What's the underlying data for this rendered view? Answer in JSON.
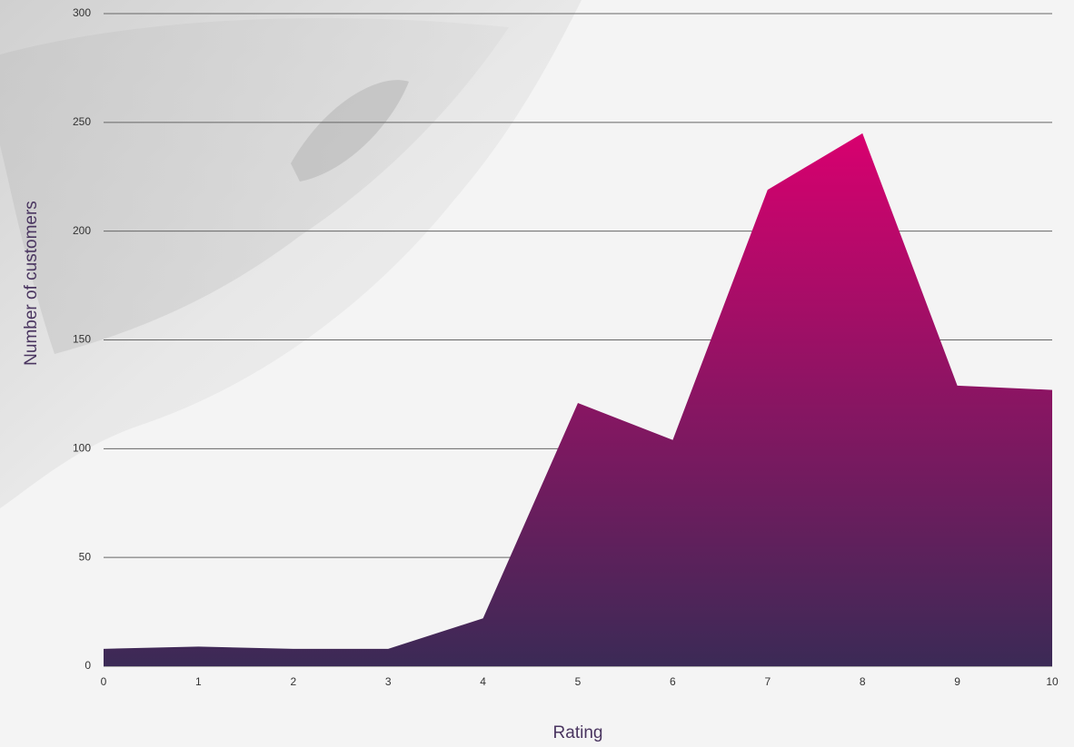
{
  "chart_data": {
    "type": "area",
    "x": [
      0,
      1,
      2,
      3,
      4,
      5,
      6,
      7,
      8,
      9,
      10
    ],
    "values": [
      8,
      9,
      8,
      8,
      22,
      121,
      104,
      219,
      245,
      129,
      127
    ],
    "xlabel": "Rating",
    "ylabel": "Number of customers",
    "xlim": [
      0,
      10
    ],
    "xticks": [
      0,
      1,
      2,
      3,
      4,
      5,
      6,
      7,
      8,
      9,
      10
    ],
    "ylim": [
      0,
      300
    ],
    "yticks": [
      0,
      50,
      100,
      150,
      200,
      250,
      300
    ],
    "grid": true,
    "color_top": "#d8006f",
    "color_bottom": "#3b2a56"
  }
}
